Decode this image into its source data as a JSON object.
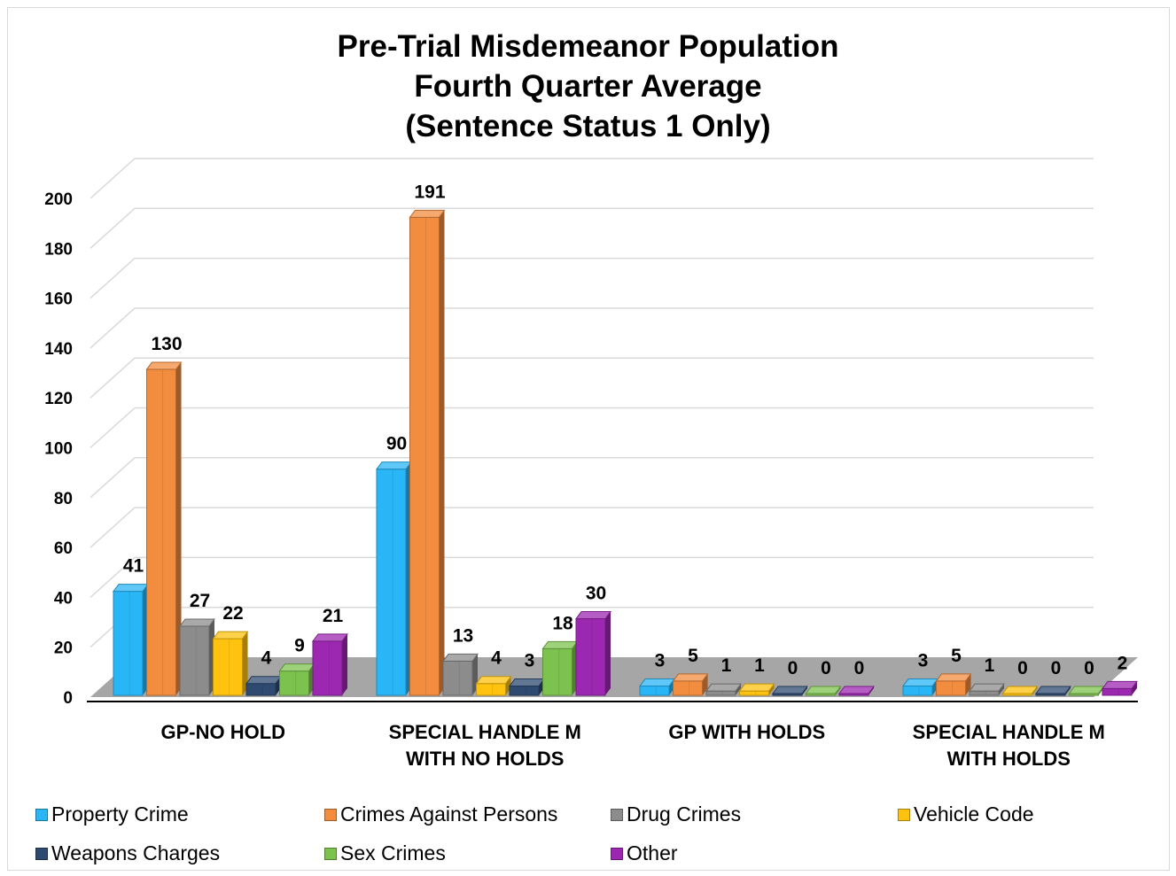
{
  "chart_data": {
    "type": "bar",
    "title_lines": [
      "Pre-Trial Misdemeanor Population",
      "Fourth Quarter Average",
      "(Sentence Status 1 Only)"
    ],
    "categories": [
      [
        "GP-NO HOLD"
      ],
      [
        "SPECIAL HANDLE M",
        "WITH NO HOLDS"
      ],
      [
        "GP WITH HOLDS"
      ],
      [
        "SPECIAL HANDLE M",
        "WITH HOLDS"
      ]
    ],
    "series": [
      {
        "name": "Property Crime",
        "color": "#29b6f6",
        "values": [
          41,
          90,
          3,
          3
        ]
      },
      {
        "name": "Crimes Against Persons",
        "color": "#f28c3f",
        "values": [
          130,
          191,
          5,
          5
        ]
      },
      {
        "name": "Drug Crimes",
        "color": "#8c8c8c",
        "values": [
          27,
          13,
          1,
          1
        ]
      },
      {
        "name": "Vehicle Code",
        "color": "#ffc20e",
        "values": [
          22,
          4,
          1,
          0
        ]
      },
      {
        "name": "Weapons Charges",
        "color": "#2e4a70",
        "values": [
          4,
          3,
          0,
          0
        ]
      },
      {
        "name": "Sex Crimes",
        "color": "#7cc24e",
        "values": [
          9,
          18,
          0,
          0
        ]
      },
      {
        "name": "Other",
        "color": "#9c27b0",
        "values": [
          21,
          30,
          0,
          2
        ]
      }
    ],
    "yticks": [
      "0",
      "20",
      "40",
      "60",
      "80",
      "100",
      "120",
      "140",
      "160",
      "180",
      "200"
    ],
    "ylim": [
      0,
      200
    ],
    "grid": true,
    "legend_position": "bottom",
    "style": "3d-column"
  }
}
